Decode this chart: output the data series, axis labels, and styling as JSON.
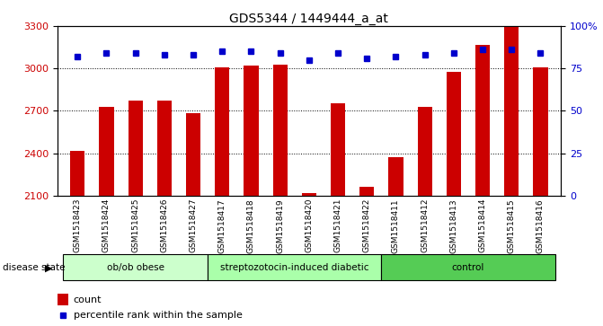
{
  "title": "GDS5344 / 1449444_a_at",
  "samples": [
    "GSM1518423",
    "GSM1518424",
    "GSM1518425",
    "GSM1518426",
    "GSM1518427",
    "GSM1518417",
    "GSM1518418",
    "GSM1518419",
    "GSM1518420",
    "GSM1518421",
    "GSM1518422",
    "GSM1518411",
    "GSM1518412",
    "GSM1518413",
    "GSM1518414",
    "GSM1518415",
    "GSM1518416"
  ],
  "counts": [
    2415,
    2730,
    2770,
    2770,
    2685,
    3010,
    3020,
    3025,
    2120,
    2755,
    2160,
    2370,
    2730,
    2975,
    3165,
    3295,
    3010
  ],
  "percentiles": [
    82,
    84,
    84,
    83,
    83,
    85,
    85,
    84,
    80,
    84,
    81,
    82,
    83,
    84,
    86,
    86,
    84
  ],
  "groups": [
    {
      "label": "ob/ob obese",
      "start": 0,
      "end": 5,
      "color": "#ccffcc"
    },
    {
      "label": "streptozotocin-induced diabetic",
      "start": 5,
      "end": 11,
      "color": "#aaffaa"
    },
    {
      "label": "control",
      "start": 11,
      "end": 17,
      "color": "#55cc55"
    }
  ],
  "ylim_left": [
    2100,
    3300
  ],
  "ylim_right": [
    0,
    100
  ],
  "yticks_left": [
    2100,
    2400,
    2700,
    3000,
    3300
  ],
  "yticks_right": [
    0,
    25,
    50,
    75,
    100
  ],
  "ytick_labels_right": [
    "0",
    "25",
    "50",
    "75",
    "100%"
  ],
  "bar_color": "#cc0000",
  "dot_color": "#0000cc",
  "bar_width": 0.5,
  "plot_bg": "#ffffff",
  "grid_color": "#000000",
  "label_bg": "#d0d0d0",
  "disease_state_label": "disease state",
  "legend_count_label": "count",
  "legend_percentile_label": "percentile rank within the sample"
}
